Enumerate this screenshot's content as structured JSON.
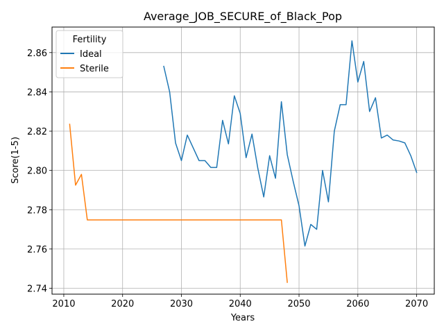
{
  "chart_data": {
    "type": "line",
    "title": "Average_JOB_SECURE_of_Black_Pop",
    "xlabel": "Years",
    "ylabel": "Score(1-5)",
    "xlim": [
      2008,
      2073
    ],
    "ylim": [
      2.737,
      2.873
    ],
    "xticks": [
      2010,
      2020,
      2030,
      2040,
      2050,
      2060,
      2070
    ],
    "yticks": [
      2.74,
      2.76,
      2.78,
      2.8,
      2.82,
      2.84,
      2.86
    ],
    "ytick_labels": [
      "2.74",
      "2.76",
      "2.78",
      "2.80",
      "2.82",
      "2.84",
      "2.86"
    ],
    "grid": true,
    "legend": {
      "title": "Fertility",
      "placement": "upper-left"
    },
    "series": [
      {
        "name": "Ideal",
        "color": "#1f77b4",
        "x": [
          2027,
          2028,
          2029,
          2030,
          2031,
          2032,
          2033,
          2034,
          2035,
          2036,
          2037,
          2038,
          2039,
          2040,
          2041,
          2042,
          2043,
          2044,
          2045,
          2046,
          2047,
          2048,
          2049,
          2050,
          2051,
          2052,
          2053,
          2054,
          2055,
          2056,
          2057,
          2058,
          2059,
          2060,
          2061,
          2062,
          2063,
          2064,
          2065,
          2066,
          2067,
          2068,
          2069,
          2070
        ],
        "y": [
          2.853,
          2.84,
          2.814,
          2.805,
          2.818,
          2.8115,
          2.805,
          2.805,
          2.8015,
          2.8015,
          2.8255,
          2.8135,
          2.838,
          2.829,
          2.8065,
          2.8185,
          2.801,
          2.7865,
          2.8075,
          2.796,
          2.835,
          2.808,
          2.7945,
          2.782,
          2.7615,
          2.7725,
          2.77,
          2.8,
          2.784,
          2.82,
          2.8335,
          2.8335,
          2.866,
          2.845,
          2.8555,
          2.83,
          2.837,
          2.8165,
          2.818,
          2.8155,
          2.815,
          2.814,
          2.8075,
          2.799
        ]
      },
      {
        "name": "Sterile",
        "color": "#ff7f0e",
        "x": [
          2011,
          2012,
          2013,
          2014,
          2015,
          2016,
          2017,
          2018,
          2019,
          2020,
          2021,
          2022,
          2023,
          2024,
          2025,
          2026,
          2027,
          2028,
          2029,
          2030,
          2031,
          2032,
          2033,
          2034,
          2035,
          2036,
          2037,
          2038,
          2039,
          2040,
          2041,
          2042,
          2043,
          2044,
          2045,
          2046,
          2047,
          2048
        ],
        "y": [
          2.8235,
          2.7925,
          2.798,
          2.7748,
          2.7748,
          2.7748,
          2.7748,
          2.7748,
          2.7748,
          2.7748,
          2.7748,
          2.7748,
          2.7748,
          2.7748,
          2.7748,
          2.7748,
          2.7748,
          2.7748,
          2.7748,
          2.7748,
          2.7748,
          2.7748,
          2.7748,
          2.7748,
          2.7748,
          2.7748,
          2.7748,
          2.7748,
          2.7748,
          2.7748,
          2.7748,
          2.7748,
          2.7748,
          2.7748,
          2.7748,
          2.7748,
          2.7748,
          2.743
        ]
      }
    ]
  }
}
